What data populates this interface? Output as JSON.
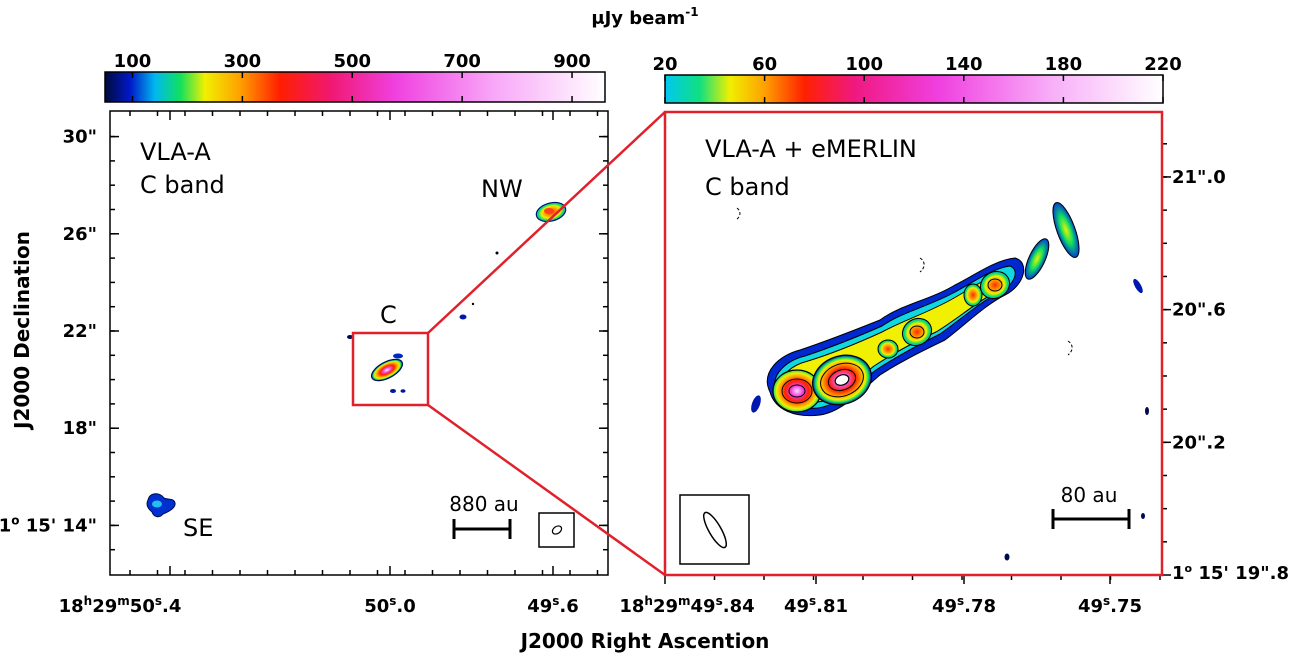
{
  "colorbar_unit": {
    "main": "μJy beam",
    "sup": "-1"
  },
  "xaxis_label": "J2000 Right Ascention",
  "yaxis_label": "J2000 Declination",
  "colors": {
    "box": "#e0202a",
    "axis": "#000000"
  },
  "chart_data": [
    {
      "type": "heatmap",
      "title": "VLA-A",
      "subtitle": "C band",
      "colorbar": {
        "ticks": [
          "100",
          "300",
          "500",
          "700",
          "900"
        ],
        "range": [
          50,
          960
        ],
        "unit": "μJy beam-1"
      },
      "x_ticks": [
        {
          "h": "18",
          "hs": "h",
          "m": "29",
          "ms": "m",
          "s": "50",
          "ss": "s",
          "f": ".4"
        },
        {
          "s": "50",
          "ss": "s",
          "f": ".0"
        },
        {
          "s": "49",
          "ss": "s",
          "f": ".6"
        }
      ],
      "y_ticks": [
        {
          "text": "30\"",
          "dec": 30
        },
        {
          "text": "26\"",
          "dec": 26
        },
        {
          "text": "22\"",
          "dec": 22
        },
        {
          "text": "18\"",
          "dec": 18
        },
        {
          "deg": "1",
          "dsup": "o",
          "rest": " 15' 14\"",
          "dec": 14
        }
      ],
      "sources": [
        {
          "label": "NW",
          "ra_offset_s": -0.62,
          "dec": 27.0
        },
        {
          "label": "C",
          "ra_offset_s": -0.33,
          "dec": 20.4
        },
        {
          "label": "SE",
          "ra_offset_s": 0.05,
          "dec": 14.8
        }
      ],
      "scale_bar": "880 au",
      "grid": false
    },
    {
      "type": "heatmap",
      "title": "VLA-A + eMERLIN",
      "subtitle": "C band",
      "colorbar": {
        "ticks": [
          "20",
          "60",
          "100",
          "140",
          "180",
          "220"
        ],
        "range": [
          20,
          220
        ],
        "unit": "μJy beam-1"
      },
      "x_ticks": [
        {
          "h": "18",
          "hs": "h",
          "m": "29",
          "ms": "m",
          "s": "49",
          "ss": "s",
          "f": ".84"
        },
        {
          "s": "49",
          "ss": "s",
          "f": ".81"
        },
        {
          "s": "49",
          "ss": "s",
          "f": ".78"
        },
        {
          "s": "49",
          "ss": "s",
          "f": ".75"
        }
      ],
      "y_ticks": [
        {
          "text": "21\".0",
          "dec": 21.0
        },
        {
          "text": "20\".6",
          "dec": 20.6
        },
        {
          "text": "20\".2",
          "dec": 20.2
        },
        {
          "deg": "1",
          "dsup": "o",
          "rest": " 15' 19\".8",
          "dec": 19.8
        }
      ],
      "scale_bar": "80 au",
      "grid": false
    }
  ]
}
